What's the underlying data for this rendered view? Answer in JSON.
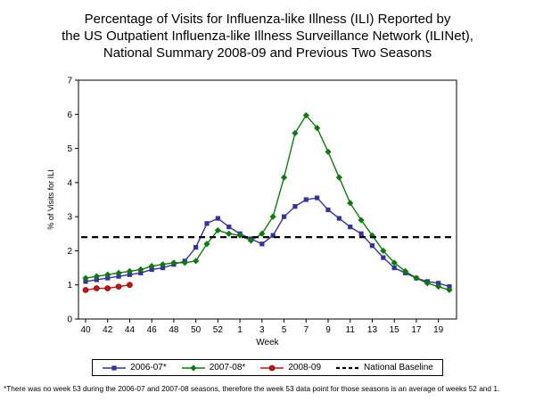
{
  "title_lines": [
    "Percentage of Visits for Influenza-like Illness (ILI) Reported by",
    "the US Outpatient Influenza-like Illness Surveillance Network (ILINet),",
    "National Summary 2008-09 and Previous Two Seasons"
  ],
  "footnote": "*There was no week 53 during the 2006-07 and 2007-08 seasons, therefore the week 53 data point for those seasons is an average of weeks 52 and 1.",
  "chart_data": {
    "type": "line",
    "title": "Percentage of Visits for Influenza-like Illness (ILI) Reported by the US Outpatient Influenza-like Illness Surveillance Network (ILINet), National Summary 2008-09 and Previous Two Seasons",
    "xlabel": "Week",
    "ylabel": "% of Visits for ILI",
    "ylim": [
      0,
      7
    ],
    "ytick_interval": 1,
    "grid": false,
    "legend_position": "bottom",
    "x_categories": [
      "40",
      "41",
      "42",
      "43",
      "44",
      "45",
      "46",
      "47",
      "48",
      "49",
      "50",
      "51",
      "52",
      "53",
      "1",
      "2",
      "3",
      "4",
      "5",
      "6",
      "7",
      "8",
      "9",
      "10",
      "11",
      "12",
      "13",
      "14",
      "15",
      "16",
      "17",
      "18",
      "19",
      "20"
    ],
    "x_tick_labels": [
      "40",
      "42",
      "44",
      "46",
      "48",
      "50",
      "52",
      "1",
      "3",
      "5",
      "7",
      "9",
      "11",
      "13",
      "15",
      "17",
      "19"
    ],
    "series": [
      {
        "name": "2006-07*",
        "marker": "square",
        "color": "#333399",
        "values": [
          1.1,
          1.15,
          1.2,
          1.25,
          1.3,
          1.35,
          1.45,
          1.5,
          1.6,
          1.7,
          2.1,
          2.8,
          2.95,
          2.7,
          2.5,
          2.35,
          2.2,
          2.45,
          3.0,
          3.3,
          3.5,
          3.55,
          3.2,
          2.95,
          2.7,
          2.5,
          2.15,
          1.8,
          1.5,
          1.35,
          1.2,
          1.1,
          1.05,
          0.95
        ]
      },
      {
        "name": "2007-08*",
        "marker": "diamond",
        "color": "#117711",
        "values": [
          1.2,
          1.25,
          1.3,
          1.35,
          1.4,
          1.45,
          1.55,
          1.6,
          1.65,
          1.65,
          1.7,
          2.2,
          2.6,
          2.5,
          2.45,
          2.3,
          2.5,
          3.0,
          4.15,
          5.45,
          5.97,
          5.6,
          4.9,
          4.15,
          3.4,
          2.9,
          2.45,
          2.0,
          1.65,
          1.4,
          1.2,
          1.05,
          0.95,
          0.85
        ]
      },
      {
        "name": "2008-09",
        "marker": "circle",
        "color": "#cc1111",
        "values": [
          0.85,
          0.9,
          0.9,
          0.95,
          1.0
        ]
      },
      {
        "name": "National Baseline",
        "type": "baseline",
        "color": "#000000",
        "dashed": true,
        "value": 2.4
      }
    ]
  }
}
